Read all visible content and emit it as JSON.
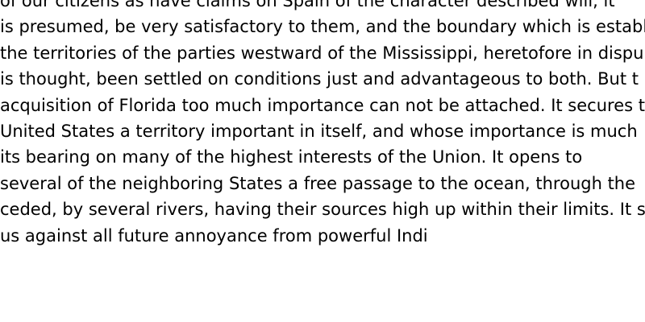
{
  "document": {
    "lines": [
      "of our citizens as have claims on Spain of the character described will, it",
      "is presumed, be very satisfactory to them, and the boundary which is establ",
      "the territories of the parties westward of the Mississippi, heretofore in dispu",
      "is thought, been settled on conditions just and advantageous to both. But t",
      "acquisition of Florida too much importance can not be attached. It secures t",
      "United States a territory important in itself, and whose importance is much",
      "its bearing on many of the highest interests of the Union. It opens to",
      "several of the neighboring States a free passage to the ocean, through the",
      "ceded, by several rivers, having their sources high up within their limits. It se",
      "us against all future annoyance from powerful Indi"
    ]
  },
  "colors": {
    "background": "#ffffff",
    "text": "#000000"
  }
}
